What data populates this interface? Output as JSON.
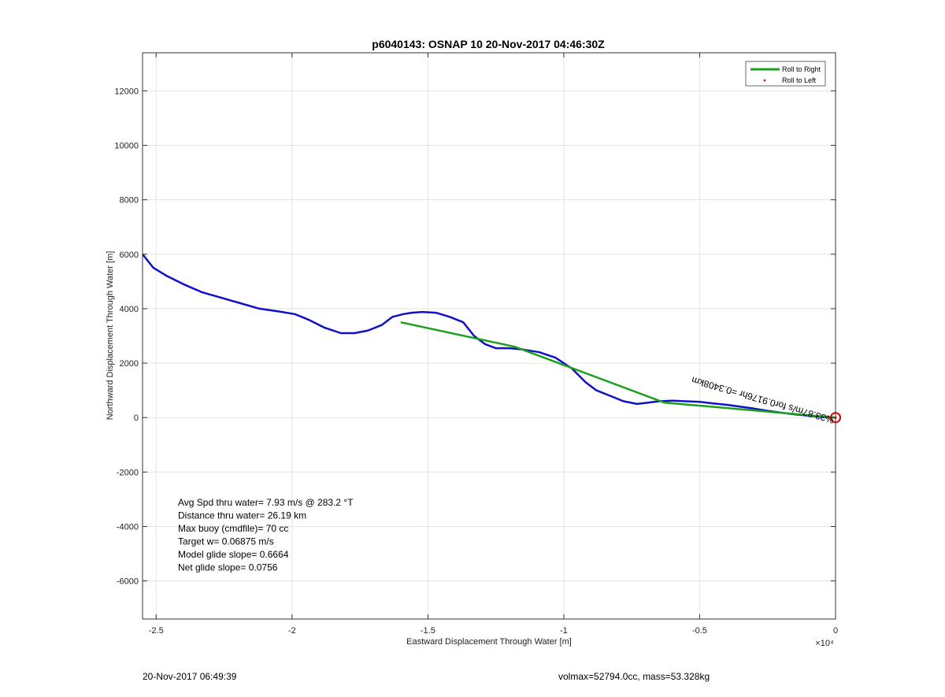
{
  "chart_data": {
    "type": "line",
    "title": "p6040143: OSNAP 10 20-Nov-2017 04:46:30Z",
    "xlabel": "Eastward Displacement Through Water [m]",
    "ylabel": "Northward Displacement Through Water [m]",
    "x_exponent_label": "×10⁴",
    "xlim": [
      -25500,
      0
    ],
    "ylim": [
      -7400,
      13400
    ],
    "x_ticks": [
      -25000,
      -20000,
      -15000,
      -10000,
      -5000,
      0
    ],
    "x_tick_labels": [
      "-2.5",
      "-2",
      "-1.5",
      "-1",
      "-0.5",
      "0"
    ],
    "y_ticks": [
      -6000,
      -4000,
      -2000,
      0,
      2000,
      4000,
      6000,
      8000,
      10000,
      12000
    ],
    "y_tick_labels": [
      "-6000",
      "-4000",
      "-2000",
      "0",
      "2000",
      "4000",
      "6000",
      "8000",
      "10000",
      "12000"
    ],
    "grid": true,
    "legend_position": "top-right",
    "legend": [
      "Roll to Right",
      "Roll to Left"
    ],
    "series": [
      {
        "name": "",
        "color": "#1010c8",
        "x": [
          -25500,
          -25100,
          -24600,
          -24000,
          -23300,
          -22600,
          -21900,
          -21200,
          -20500,
          -19900,
          -19400,
          -18800,
          -18200,
          -17700,
          -17200,
          -16700,
          -16300,
          -15900,
          -15600,
          -15200,
          -14700,
          -14200,
          -13700,
          -13300,
          -12900,
          -12500,
          -12000,
          -11500,
          -10900,
          -10300,
          -9700,
          -9200,
          -8800,
          -8300,
          -7800,
          -7300,
          -6900,
          -6500,
          -6000,
          -5500,
          -5000,
          -4500,
          -4000,
          -3500,
          -3000,
          -2500,
          -2000,
          -1500,
          -1000,
          -600,
          -300,
          0
        ],
        "y": [
          6000,
          5500,
          5200,
          4900,
          4600,
          4400,
          4200,
          4000,
          3900,
          3800,
          3600,
          3300,
          3100,
          3100,
          3200,
          3400,
          3700,
          3800,
          3850,
          3880,
          3850,
          3700,
          3500,
          3000,
          2700,
          2550,
          2550,
          2500,
          2400,
          2200,
          1800,
          1300,
          1000,
          800,
          600,
          500,
          550,
          600,
          620,
          600,
          580,
          520,
          470,
          400,
          330,
          250,
          180,
          120,
          70,
          30,
          10,
          0
        ]
      },
      {
        "name": "Roll to Right",
        "color": "#1aa01a",
        "x": [
          -16000,
          -11800,
          -6300,
          0
        ],
        "y": [
          3500,
          2600,
          550,
          0
        ]
      }
    ],
    "annotation_text": "%33.87m/s for0.9176hr =0.3408km",
    "notes": [
      "Avg Spd thru water=  7.93 m/s @ 283.2 °T",
      "Distance thru water= 26.19 km",
      "Max buoy (cmdfile)= 70 cc",
      "Target w= 0.06875 m/s",
      "Model glide slope= 0.6664",
      "Net glide slope= 0.0756"
    ],
    "end_marker_color": "#dd0000"
  },
  "footer": {
    "left": "20-Nov-2017 06:49:39",
    "right": "volmax=52794.0cc, mass=53.328kg"
  }
}
